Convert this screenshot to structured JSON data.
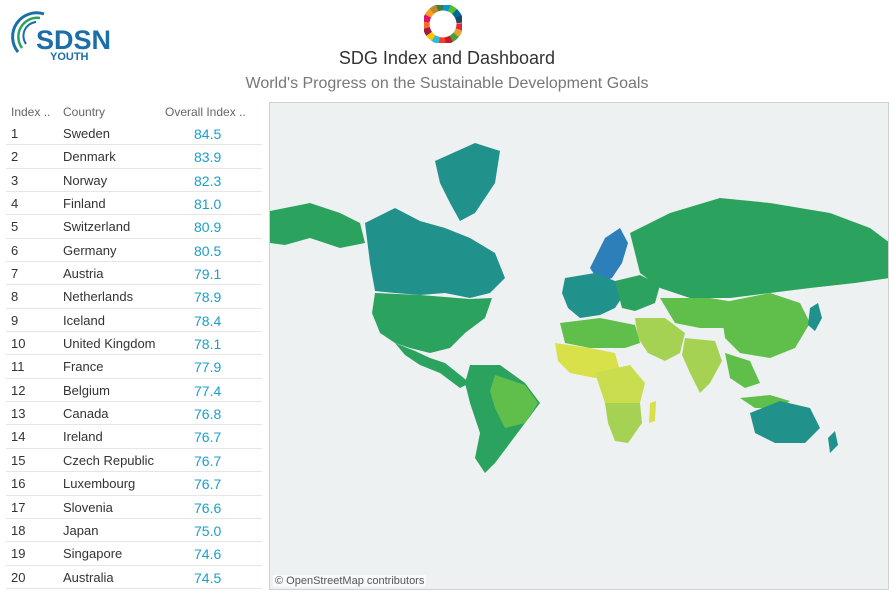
{
  "brand": {
    "logo_text": "SDSN",
    "logo_sub": "YOUTH",
    "accent": "#1b6ea8"
  },
  "header": {
    "title": "SDG Index and Dashboard",
    "subtitle": "World's Progress on the Sustainable Development Goals",
    "wheel_icon": "sdg-color-wheel-icon"
  },
  "table": {
    "columns": [
      "Index ..",
      "Country",
      "Overall Index .."
    ],
    "score_color": "#1a9fc8",
    "rows": [
      {
        "index": "1",
        "country": "Sweden",
        "score": "84.5"
      },
      {
        "index": "2",
        "country": "Denmark",
        "score": "83.9"
      },
      {
        "index": "3",
        "country": "Norway",
        "score": "82.3"
      },
      {
        "index": "4",
        "country": "Finland",
        "score": "81.0"
      },
      {
        "index": "5",
        "country": "Switzerland",
        "score": "80.9"
      },
      {
        "index": "6",
        "country": "Germany",
        "score": "80.5"
      },
      {
        "index": "7",
        "country": "Austria",
        "score": "79.1"
      },
      {
        "index": "8",
        "country": "Netherlands",
        "score": "78.9"
      },
      {
        "index": "9",
        "country": "Iceland",
        "score": "78.4"
      },
      {
        "index": "10",
        "country": "United Kingdom",
        "score": "78.1"
      },
      {
        "index": "11",
        "country": "France",
        "score": "77.9"
      },
      {
        "index": "12",
        "country": "Belgium",
        "score": "77.4"
      },
      {
        "index": "13",
        "country": "Canada",
        "score": "76.8"
      },
      {
        "index": "14",
        "country": "Ireland",
        "score": "76.7"
      },
      {
        "index": "15",
        "country": "Czech Republic",
        "score": "76.7"
      },
      {
        "index": "16",
        "country": "Luxembourg",
        "score": "76.7"
      },
      {
        "index": "17",
        "country": "Slovenia",
        "score": "76.6"
      },
      {
        "index": "18",
        "country": "Japan",
        "score": "75.0"
      },
      {
        "index": "19",
        "country": "Singapore",
        "score": "74.6"
      },
      {
        "index": "20",
        "country": "Australia",
        "score": "74.5"
      }
    ]
  },
  "map": {
    "credit": "© OpenStreetMap contributors",
    "colors": {
      "ocean": "#eef1f2",
      "top": "#2c7fb8",
      "high": "#21918c",
      "mid_high": "#2ca25f",
      "mid": "#5fbf4a",
      "mid_low": "#a6d254",
      "low": "#d9e14a"
    }
  }
}
